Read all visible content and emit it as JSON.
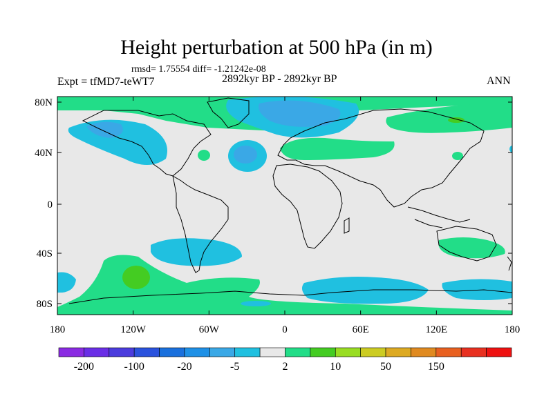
{
  "title": "Height perturbation at 500 hPa (in m)",
  "stats": "rmsd= 1.75554 diff= -1.21242e-08",
  "experiment": "Expt = tfMD7-teWT7",
  "period": "2892kyr BP - 2892kyr BP",
  "season": "ANN",
  "lat_labels": [
    "80N",
    "40N",
    "0",
    "40S",
    "80S"
  ],
  "lon_labels": [
    "180",
    "120W",
    "60W",
    "0",
    "60E",
    "120E",
    "180"
  ],
  "colorbar": {
    "colors": [
      "#8a2be2",
      "#6a2ee6",
      "#4b3cdd",
      "#2a52dd",
      "#1a70dd",
      "#1e90e6",
      "#3aa8e6",
      "#20c0e0",
      "#e8e8e8",
      "#22dd88",
      "#44cc22",
      "#99dd22",
      "#cccc22",
      "#ddaa22",
      "#e08a20",
      "#e86020",
      "#e83020",
      "#ee1111"
    ],
    "labels": [
      "-200",
      "-100",
      "-20",
      "-5",
      "2",
      "10",
      "50",
      "150"
    ]
  }
}
